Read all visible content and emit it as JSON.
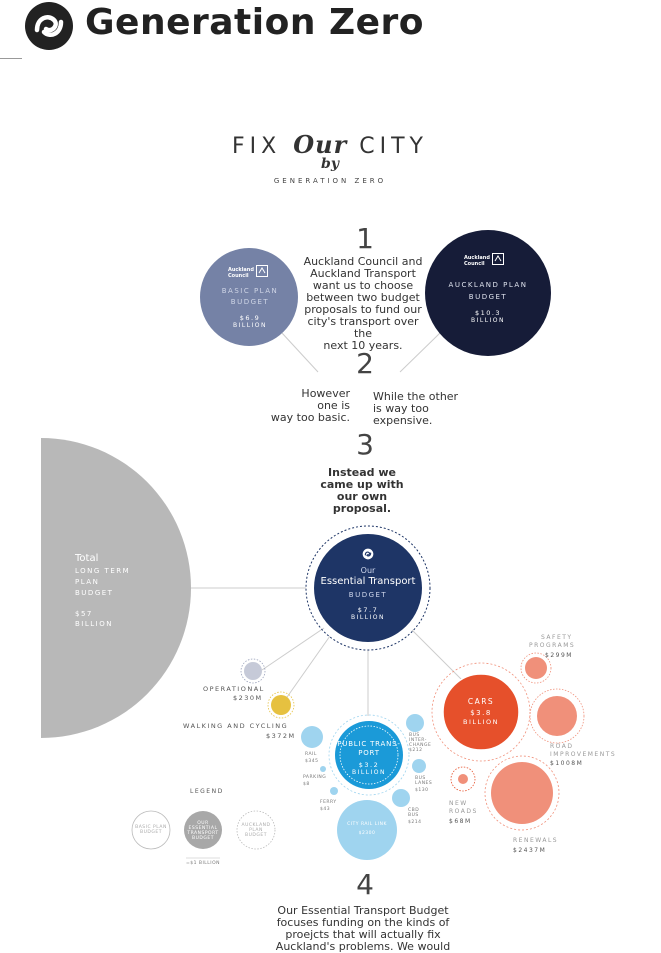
{
  "header": {
    "brand": "Generation Zero",
    "logo_icon": "generation-zero-swirl-icon"
  },
  "title": {
    "prefix": "FIX",
    "emphasis": "Our",
    "suffix": "CITY",
    "by": "by",
    "org": "GENERATION ZERO"
  },
  "steps": {
    "one": "1",
    "one_text": [
      "Auckland Council and",
      "Auckland Transport",
      "want us to choose",
      "between two budget",
      "proposals to fund our",
      "city's transport over the",
      "next 10 years."
    ],
    "two": "2",
    "two_left": [
      "However",
      "one is",
      "way too basic."
    ],
    "two_right": [
      "While the other",
      "is way too",
      "expensive."
    ],
    "three": "3",
    "three_text": [
      "Instead we",
      "came up with",
      "our own",
      "proposal."
    ],
    "four": "4",
    "four_text": [
      "Our Essential Transport Budget",
      "focuses funding on the kinds of",
      "proejcts that will actually fix",
      "Auckland's problems. We would"
    ]
  },
  "basic_plan": {
    "org": "Auckland Council",
    "name_1": "BASIC PLAN",
    "name_2": "BUDGET",
    "amount": "$6.9",
    "unit": "BILLION",
    "color": "#7582a6"
  },
  "auckland_plan": {
    "org": "Auckland Council",
    "name_1": "AUCKLAND PLAN",
    "name_2": "BUDGET",
    "amount": "$10.3",
    "unit": "BILLION",
    "color": "#161c38"
  },
  "long_term": {
    "total": "Total",
    "name_1": "LONG TERM",
    "name_2": "PLAN",
    "name_3": "BUDGET",
    "amount": "$57",
    "unit": "BILLION",
    "color": "#b8b8b8"
  },
  "essential": {
    "our": "Our",
    "name": "Essential Transport",
    "budget": "BUDGET",
    "amount": "$7.7",
    "unit": "BILLION",
    "color": "#1e3566"
  },
  "categories": {
    "operational": {
      "label": "OPERATIONAL",
      "amount": "$230M"
    },
    "walking": {
      "label": "WALKING AND CYCLING",
      "amount": "$372M"
    },
    "public_transport": {
      "name_1": "PUBLIC TRANS-",
      "name_2": "PORT",
      "amount": "$3.2",
      "unit": "BILLION"
    },
    "cars": {
      "name": "CARS",
      "amount": "$3.8",
      "unit": "BILLION"
    },
    "safety": {
      "label_1": "SAFETY",
      "label_2": "PROGRAMS",
      "amount": "$299M"
    },
    "road_improvements": {
      "label_1": "ROAD",
      "label_2": "IMPROVEMENTS",
      "amount": "$1008M"
    },
    "new_roads": {
      "label_1": "NEW",
      "label_2": "ROADS",
      "amount": "$68M"
    },
    "renewals": {
      "label": "RENEWALS",
      "amount": "$2437M"
    }
  },
  "pt_sub": {
    "rail": "RAIL",
    "rail_amt": "$345",
    "parking": "PARKING",
    "parking_amt": "$8",
    "ferry": "FERRY",
    "ferry_amt": "$43",
    "bus_interchange_1": "BUS",
    "bus_interchange_2": "INTER-",
    "bus_interchange_3": "CHANGE",
    "bus_interchange_amt": "$212",
    "bus_lanes_1": "BUS",
    "bus_lanes_2": "LANES",
    "bus_lanes_amt": "$130",
    "cbd_bus_1": "CBD",
    "cbd_bus_2": "BUS",
    "cbd_bus_amt": "$214",
    "city_rail_1": "CITY RAIL",
    "city_rail_2": "LINK",
    "city_rail_amt": "$2300"
  },
  "legend": {
    "title": "LEGEND",
    "basic": [
      "BASIC PLAN",
      "BUDGET"
    ],
    "ours": [
      "OUR",
      "ESSENTIAL",
      "TRANSPORT",
      "BUDGET"
    ],
    "auckland": [
      "AUCKLAND",
      "PLAN",
      "BUDGET"
    ],
    "scale": "=$1 BILLION"
  },
  "colors": {
    "cars": "#e6502b",
    "cars_light": "#f0907a",
    "pt": "#1b9ad8",
    "pt_light": "#9fd4ef",
    "walking": "#e6c140",
    "operational": "#c6cad8"
  }
}
